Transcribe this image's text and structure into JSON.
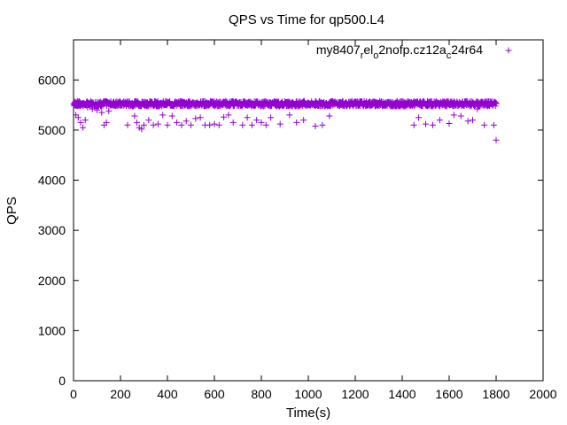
{
  "chart_data": {
    "type": "scatter",
    "title": "QPS vs Time for qp500.L4",
    "xlabel": "Time(s)",
    "ylabel": "QPS",
    "xlim": [
      0,
      2000
    ],
    "ylim": [
      0,
      6800
    ],
    "x_ticks": [
      0,
      200,
      400,
      600,
      800,
      1000,
      1200,
      1400,
      1600,
      1800,
      2000
    ],
    "y_ticks": [
      0,
      1000,
      2000,
      3000,
      4000,
      5000,
      6000
    ],
    "grid": false,
    "legend_position": "top-right",
    "series": [
      {
        "name": "my8407_rel_o2nofp.cz12a_c24r64",
        "color": "#9400d3",
        "marker": "plus",
        "band": {
          "x_start": 0,
          "x_end": 1800,
          "step": 2,
          "center": 5525,
          "spread": 50
        },
        "points": [
          [
            5,
            5500
          ],
          [
            10,
            5300
          ],
          [
            20,
            5250
          ],
          [
            30,
            5150
          ],
          [
            40,
            5050
          ],
          [
            50,
            5200
          ],
          [
            60,
            5450
          ],
          [
            80,
            5420
          ],
          [
            100,
            5400
          ],
          [
            120,
            5350
          ],
          [
            130,
            5100
          ],
          [
            140,
            5150
          ],
          [
            150,
            5380
          ],
          [
            230,
            5100
          ],
          [
            260,
            5280
          ],
          [
            270,
            5150
          ],
          [
            280,
            5050
          ],
          [
            290,
            5020
          ],
          [
            300,
            5100
          ],
          [
            320,
            5200
          ],
          [
            340,
            5100
          ],
          [
            360,
            5120
          ],
          [
            380,
            5300
          ],
          [
            400,
            5100
          ],
          [
            420,
            5280
          ],
          [
            440,
            5150
          ],
          [
            460,
            5100
          ],
          [
            480,
            5180
          ],
          [
            500,
            5100
          ],
          [
            520,
            5230
          ],
          [
            540,
            5250
          ],
          [
            560,
            5100
          ],
          [
            580,
            5100
          ],
          [
            600,
            5120
          ],
          [
            620,
            5100
          ],
          [
            640,
            5260
          ],
          [
            660,
            5300
          ],
          [
            680,
            5150
          ],
          [
            720,
            5100
          ],
          [
            740,
            5250
          ],
          [
            760,
            5100
          ],
          [
            780,
            5200
          ],
          [
            800,
            5150
          ],
          [
            820,
            5100
          ],
          [
            840,
            5250
          ],
          [
            880,
            5120
          ],
          [
            920,
            5300
          ],
          [
            950,
            5150
          ],
          [
            980,
            5200
          ],
          [
            1030,
            5080
          ],
          [
            1060,
            5100
          ],
          [
            1090,
            5280
          ],
          [
            1450,
            5100
          ],
          [
            1470,
            5250
          ],
          [
            1500,
            5120
          ],
          [
            1530,
            5100
          ],
          [
            1560,
            5200
          ],
          [
            1600,
            5130
          ],
          [
            1620,
            5300
          ],
          [
            1650,
            5280
          ],
          [
            1680,
            5180
          ],
          [
            1700,
            5200
          ],
          [
            1720,
            5420
          ],
          [
            1750,
            5100
          ],
          [
            1790,
            5100
          ],
          [
            1800,
            4800
          ]
        ]
      }
    ]
  }
}
